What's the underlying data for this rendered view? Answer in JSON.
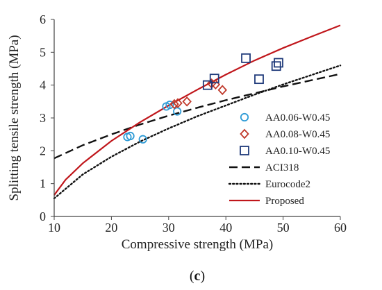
{
  "chart_data": {
    "type": "scatter",
    "xlabel": "Compressive strength (MPa)",
    "ylabel": "Splitting tensile strength (MPa)",
    "xlim": [
      10,
      60
    ],
    "ylim": [
      0,
      6
    ],
    "xticks": [
      "10",
      "20",
      "30",
      "40",
      "50",
      "60"
    ],
    "yticks": [
      "0",
      "1",
      "2",
      "3",
      "4",
      "5",
      "6"
    ],
    "grid": false,
    "legend_position": "bottom-right",
    "caption_open": "(",
    "caption_letter": "c",
    "caption_close": ")",
    "series": [
      {
        "name": "AA0.06-W0.45",
        "kind": "scatter",
        "marker": "circle",
        "color": "#2e9bd6",
        "points": [
          [
            22.8,
            2.42
          ],
          [
            23.3,
            2.45
          ],
          [
            25.5,
            2.35
          ],
          [
            29.6,
            3.35
          ],
          [
            30.2,
            3.4
          ],
          [
            31.5,
            3.2
          ]
        ]
      },
      {
        "name": "AA0.08-W0.45",
        "kind": "scatter",
        "marker": "diamond",
        "color": "#c0392b",
        "points": [
          [
            31.0,
            3.42
          ],
          [
            31.6,
            3.45
          ],
          [
            33.2,
            3.5
          ],
          [
            37.5,
            4.05
          ],
          [
            38.2,
            4.02
          ],
          [
            39.4,
            3.85
          ]
        ]
      },
      {
        "name": "AA0.10-W0.45",
        "kind": "scatter",
        "marker": "square",
        "color": "#1f3a7a",
        "points": [
          [
            36.8,
            4.0
          ],
          [
            38.0,
            4.2
          ],
          [
            43.5,
            4.82
          ],
          [
            45.8,
            4.18
          ],
          [
            48.8,
            4.58
          ],
          [
            49.2,
            4.68
          ]
        ]
      },
      {
        "name": "ACI318",
        "kind": "line",
        "style": "dashed",
        "color": "#111111",
        "x": [
          10,
          15,
          20,
          25,
          30,
          35,
          40,
          45,
          50,
          55,
          60
        ],
        "y": [
          1.77,
          2.17,
          2.5,
          2.8,
          3.07,
          3.31,
          3.54,
          3.75,
          3.96,
          4.15,
          4.34
        ]
      },
      {
        "name": "Eurocode2",
        "kind": "line",
        "style": "dotted",
        "color": "#111111",
        "x": [
          10,
          15,
          20,
          25,
          30,
          35,
          40,
          45,
          50,
          55,
          60
        ],
        "y": [
          0.55,
          1.28,
          1.82,
          2.28,
          2.68,
          3.05,
          3.38,
          3.71,
          4.02,
          4.31,
          4.6
        ]
      },
      {
        "name": "Proposed",
        "kind": "line",
        "style": "solid",
        "color": "#c0161b",
        "x": [
          10,
          12,
          15,
          20,
          25,
          30,
          35,
          40,
          45,
          50,
          55,
          60
        ],
        "y": [
          0.65,
          1.12,
          1.62,
          2.3,
          2.87,
          3.38,
          3.86,
          4.32,
          4.75,
          5.13,
          5.48,
          5.82
        ]
      }
    ]
  }
}
